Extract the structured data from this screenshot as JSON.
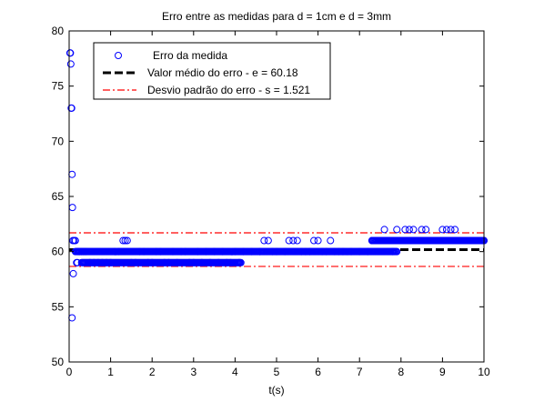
{
  "chart_data": {
    "type": "scatter",
    "title": "Erro entre as medidas para d = 1cm e d = 3mm",
    "xlabel": "t(s)",
    "ylabel": "",
    "xlim": [
      0,
      10
    ],
    "ylim": [
      50,
      80
    ],
    "xticks": [
      "0",
      "1",
      "2",
      "3",
      "4",
      "5",
      "6",
      "7",
      "8",
      "9",
      "10"
    ],
    "yticks": [
      "50",
      "55",
      "60",
      "65",
      "70",
      "75",
      "80"
    ],
    "grid": false,
    "legend_position": "top-left",
    "series": [
      {
        "name": "Erro da medida",
        "kind": "markers",
        "marker": "circle",
        "color": "#0000ff",
        "edge_color": "#0000ff",
        "points": [
          [
            0.02,
            78
          ],
          [
            0.03,
            78
          ],
          [
            0.04,
            77
          ],
          [
            0.05,
            73
          ],
          [
            0.06,
            73
          ],
          [
            0.07,
            67
          ],
          [
            0.08,
            64
          ],
          [
            0.09,
            61
          ],
          [
            0.1,
            58
          ],
          [
            0.07,
            54
          ],
          [
            0.12,
            61
          ],
          [
            0.15,
            61
          ],
          [
            0.18,
            59
          ],
          [
            0.2,
            59
          ],
          [
            0.22,
            60
          ],
          [
            0.25,
            60
          ],
          [
            0.3,
            60
          ],
          [
            0.35,
            60
          ],
          [
            0.4,
            60
          ],
          [
            0.5,
            59
          ],
          [
            0.6,
            59
          ],
          [
            0.7,
            59
          ],
          [
            0.8,
            59
          ],
          [
            0.9,
            59
          ],
          [
            1.0,
            59
          ],
          [
            1.1,
            60
          ],
          [
            1.2,
            60
          ],
          [
            1.3,
            61
          ],
          [
            1.35,
            61
          ],
          [
            1.4,
            61
          ],
          [
            1.5,
            59
          ],
          [
            1.6,
            59
          ],
          [
            1.7,
            60
          ],
          [
            1.8,
            60
          ],
          [
            1.9,
            59
          ],
          [
            2.0,
            59
          ],
          [
            2.1,
            60
          ],
          [
            2.2,
            60
          ],
          [
            2.3,
            59
          ],
          [
            2.4,
            59
          ],
          [
            2.5,
            60
          ],
          [
            2.6,
            59
          ],
          [
            2.7,
            60
          ],
          [
            2.8,
            60
          ],
          [
            2.9,
            59
          ],
          [
            3.0,
            59
          ],
          [
            3.1,
            60
          ],
          [
            3.2,
            59
          ],
          [
            3.3,
            60
          ],
          [
            3.4,
            59
          ],
          [
            3.5,
            60
          ],
          [
            3.6,
            59
          ],
          [
            3.7,
            60
          ],
          [
            3.8,
            59
          ],
          [
            3.9,
            59
          ],
          [
            4.0,
            60
          ],
          [
            4.1,
            59
          ],
          [
            4.2,
            60
          ],
          [
            4.4,
            60
          ],
          [
            4.6,
            60
          ],
          [
            4.7,
            61
          ],
          [
            4.8,
            61
          ],
          [
            4.9,
            60
          ],
          [
            5.0,
            60
          ],
          [
            5.2,
            60
          ],
          [
            5.3,
            61
          ],
          [
            5.4,
            61
          ],
          [
            5.5,
            61
          ],
          [
            5.6,
            60
          ],
          [
            5.7,
            60
          ],
          [
            5.8,
            60
          ],
          [
            5.9,
            61
          ],
          [
            6.0,
            61
          ],
          [
            6.1,
            60
          ],
          [
            6.2,
            60
          ],
          [
            6.3,
            61
          ],
          [
            6.4,
            60
          ],
          [
            6.5,
            60
          ],
          [
            6.6,
            60
          ],
          [
            6.8,
            60
          ],
          [
            7.0,
            60
          ],
          [
            7.2,
            60
          ],
          [
            7.3,
            61
          ],
          [
            7.5,
            61
          ],
          [
            7.6,
            62
          ],
          [
            7.7,
            61
          ],
          [
            7.8,
            60
          ],
          [
            7.9,
            62
          ],
          [
            8.0,
            61
          ],
          [
            8.1,
            62
          ],
          [
            8.2,
            62
          ],
          [
            8.3,
            62
          ],
          [
            8.4,
            61
          ],
          [
            8.5,
            62
          ],
          [
            8.6,
            62
          ],
          [
            8.7,
            61
          ],
          [
            8.8,
            61
          ],
          [
            8.9,
            61
          ],
          [
            9.0,
            62
          ],
          [
            9.1,
            62
          ],
          [
            9.2,
            62
          ],
          [
            9.3,
            62
          ],
          [
            9.4,
            61
          ],
          [
            9.5,
            61
          ],
          [
            9.6,
            61
          ],
          [
            9.7,
            61
          ],
          [
            9.8,
            61
          ],
          [
            9.9,
            61
          ],
          [
            10.0,
            61
          ]
        ],
        "dense_runs": [
          {
            "y": 59,
            "x_from": 0.3,
            "x_to": 4.15
          },
          {
            "y": 60,
            "x_from": 0.15,
            "x_to": 4.6
          },
          {
            "y": 60,
            "x_from": 4.6,
            "x_to": 7.9
          },
          {
            "y": 61,
            "x_from": 7.3,
            "x_to": 10.0
          }
        ]
      },
      {
        "name": "Valor médio do erro - e = 60.18",
        "kind": "hline",
        "value": 60.18,
        "color": "#000000",
        "dash": "dashed"
      },
      {
        "name": "Desvio padrão do erro - s = 1.521",
        "kind": "hlines",
        "values": [
          58.659,
          61.701
        ],
        "color": "#ff0000",
        "dash": "dashdot"
      }
    ]
  }
}
